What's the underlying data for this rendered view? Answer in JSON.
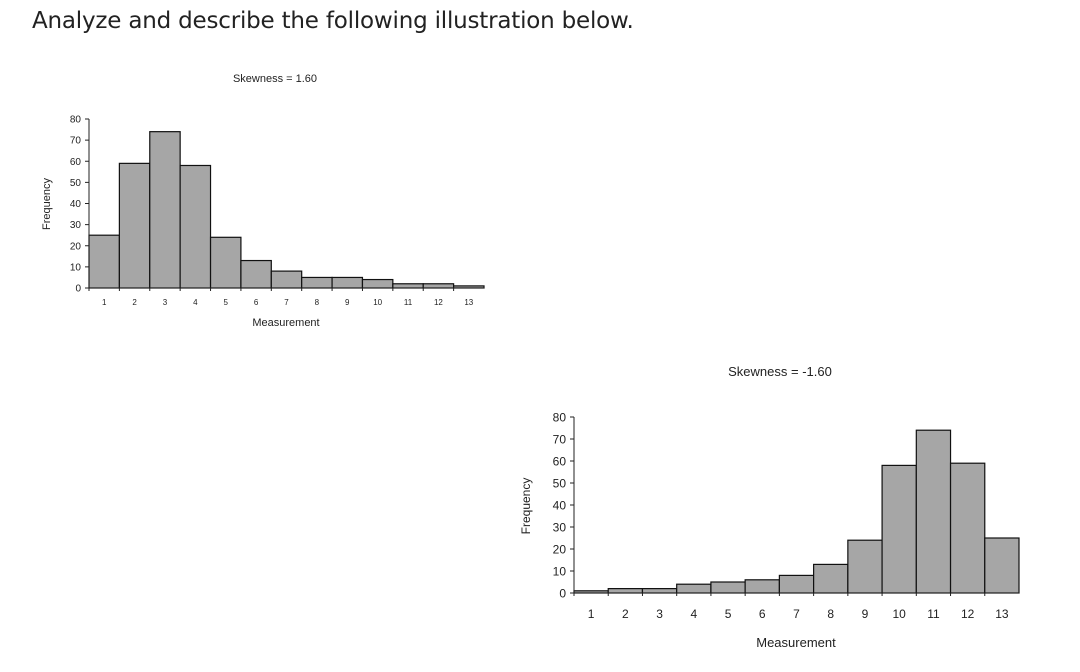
{
  "page": {
    "heading": "Analyze and describe the following illustration below."
  },
  "colors": {
    "bar_fill": "#a6a6a6",
    "bar_stroke": "#111111",
    "text": "#222222"
  },
  "chart_data": [
    {
      "type": "bar",
      "title": "Skewness = 1.60",
      "xlabel": "Measurement",
      "ylabel": "Frequency",
      "categories": [
        "1",
        "2",
        "3",
        "4",
        "5",
        "6",
        "7",
        "8",
        "9",
        "10",
        "11",
        "12",
        "13"
      ],
      "values": [
        25,
        59,
        74,
        58,
        24,
        13,
        8,
        5,
        5,
        4,
        2,
        2,
        1
      ],
      "ylim": [
        0,
        80
      ],
      "yticks": [
        "0",
        "10",
        "20",
        "30",
        "40",
        "50",
        "60",
        "70",
        "80"
      ]
    },
    {
      "type": "bar",
      "title": "Skewness = -1.60",
      "xlabel": "Measurement",
      "ylabel": "Frequency",
      "categories": [
        "1",
        "2",
        "3",
        "4",
        "5",
        "6",
        "7",
        "8",
        "9",
        "10",
        "11",
        "12",
        "13"
      ],
      "values": [
        1,
        2,
        2,
        4,
        5,
        6,
        8,
        13,
        24,
        58,
        74,
        59,
        25
      ],
      "ylim": [
        0,
        80
      ],
      "yticks": [
        "0",
        "10",
        "20",
        "30",
        "40",
        "50",
        "60",
        "70",
        "80"
      ]
    }
  ]
}
